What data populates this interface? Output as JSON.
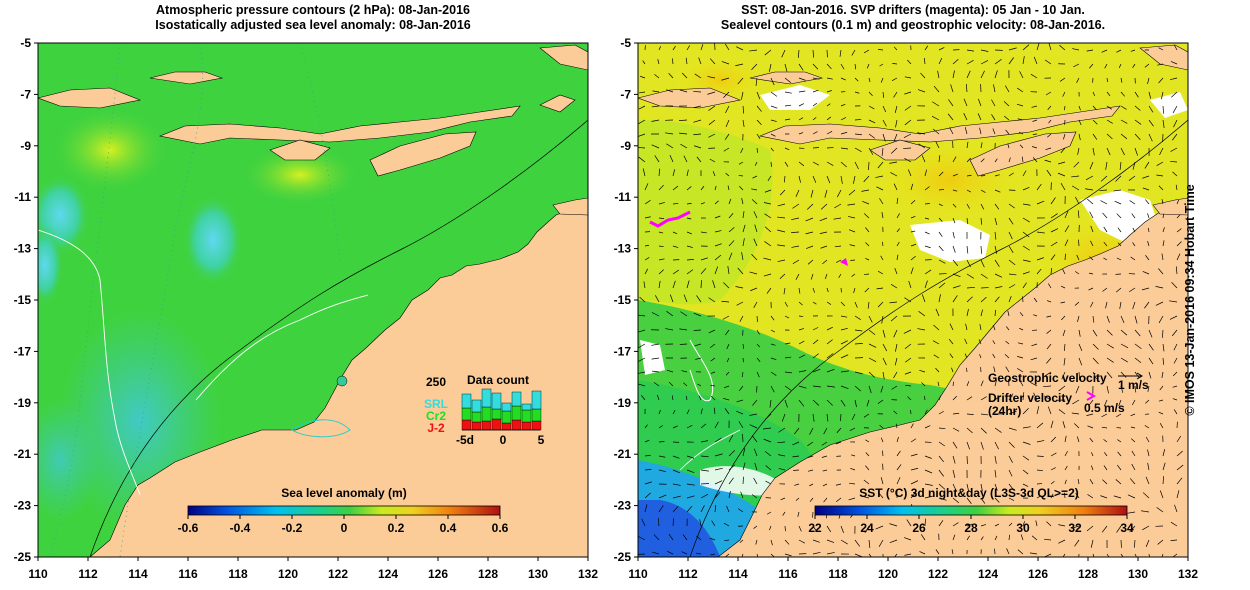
{
  "left_panel": {
    "title_line1": "Atmospheric pressure contours (2 hPa): 08-Jan-2016",
    "title_line2": "Isostatically adjusted sea level anomaly: 08-Jan-2016",
    "colorbar_title": "Sea level anomaly (m)",
    "colorbar_ticks": [
      "-0.6",
      "-0.4",
      "-0.2",
      "0",
      "0.2",
      "0.4",
      "0.6"
    ],
    "inset": {
      "title": "Data count",
      "ymax_label": "250",
      "x_labels": [
        "-5d",
        "0",
        "5"
      ],
      "legend": [
        {
          "label": "SRL",
          "color": "#33dddd"
        },
        {
          "label": "Cr2",
          "color": "#22dd22"
        },
        {
          "label": "J-2",
          "color": "#ee1111"
        }
      ]
    }
  },
  "right_panel": {
    "title_line1": "SST: 08-Jan-2016. SVP drifters (magenta): 05 Jan - 10 Jan.",
    "title_line2": "Sealevel contours (0.1 m) and geostrophic velocity: 08-Jan-2016.",
    "colorbar_title": "SST (°C) 3d night&day (L3S-3d QL>=2)",
    "colorbar_ticks": [
      "22",
      "24",
      "26",
      "28",
      "30",
      "32",
      "34"
    ],
    "legend": {
      "geostrophic_label": "Geostrophic velocity",
      "geostrophic_scale": "1 m/s",
      "drifter_label": "Drifter velocity",
      "drifter_sub": "(24hr)",
      "drifter_scale": "0.5 m/s"
    }
  },
  "axes": {
    "x_ticks": [
      "110",
      "112",
      "114",
      "116",
      "118",
      "120",
      "122",
      "124",
      "126",
      "128",
      "130",
      "132"
    ],
    "y_ticks": [
      "-5",
      "-7",
      "-9",
      "-11",
      "-13",
      "-15",
      "-17",
      "-19",
      "-21",
      "-23",
      "-25"
    ]
  },
  "credit": "© IMOS 13-Jan-2016 09:34 Hobart Time",
  "colors": {
    "land": "#fbcb98",
    "ocean_green": "#3fd23f",
    "sst_yellow": "#e6e61e",
    "magenta": "#ff00ff"
  }
}
